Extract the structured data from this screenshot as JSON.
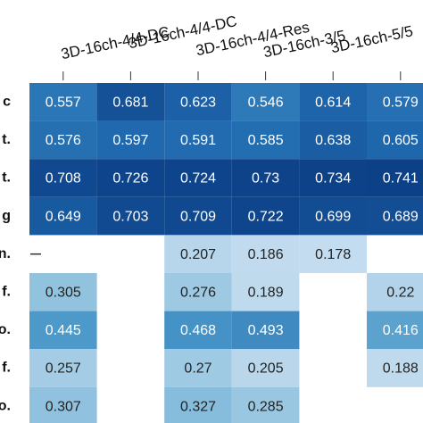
{
  "chart_data": {
    "type": "heatmap",
    "categories": [
      "3D-16ch-4/4-DC",
      "3D-16ch-4/4-DC",
      "3D-16ch-4/4-Res",
      "3D-16ch-3/5",
      "3D-16ch-5/5",
      null
    ],
    "rows": [
      "c",
      "t.",
      "t.",
      "g",
      "n.",
      "f.",
      "o.",
      "f.",
      "o."
    ],
    "values": [
      [
        0.557,
        0.681,
        0.623,
        0.546,
        0.614,
        0.579
      ],
      [
        0.576,
        0.597,
        0.591,
        0.585,
        0.638,
        0.605
      ],
      [
        0.708,
        0.726,
        0.724,
        0.73,
        0.734,
        0.741
      ],
      [
        0.649,
        0.703,
        0.709,
        0.722,
        0.699,
        0.689
      ],
      [
        null,
        null,
        0.207,
        0.186,
        0.178,
        null
      ],
      [
        0.305,
        null,
        0.276,
        0.189,
        null,
        0.22
      ],
      [
        0.445,
        null,
        0.468,
        0.493,
        null,
        0.416
      ],
      [
        0.257,
        null,
        0.27,
        0.205,
        null,
        0.188
      ],
      [
        0.307,
        null,
        0.327,
        0.285,
        null,
        null
      ]
    ],
    "color_scale": {
      "range": [
        0.15,
        0.75
      ],
      "colors": [
        "#cfe1f2",
        "#93c4e0",
        "#4a98c9",
        "#1f68ae",
        "#0b3d84"
      ]
    }
  }
}
